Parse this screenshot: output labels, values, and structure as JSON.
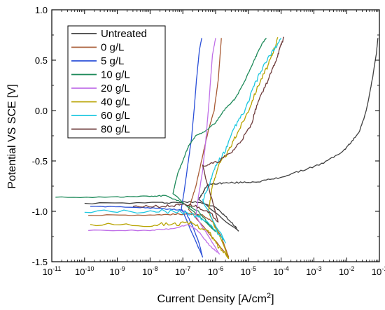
{
  "chart_data": {
    "type": "line",
    "title": "",
    "xlabel": "Current Density [A/cm",
    "xlabel_sup": "2",
    "xlabel_end": "]",
    "ylabel": "Potential VS SCE [V]",
    "x_scale": "log",
    "xlim": [
      1e-11,
      0.1
    ],
    "ylim": [
      -1.5,
      1.0
    ],
    "grid": false,
    "legend_position": "top-left",
    "x_ticks": [
      {
        "base": "10",
        "exp": "-11",
        "value": 1e-11
      },
      {
        "base": "10",
        "exp": "-10",
        "value": 1e-10
      },
      {
        "base": "10",
        "exp": "-9",
        "value": 1e-09
      },
      {
        "base": "10",
        "exp": "-8",
        "value": 1e-08
      },
      {
        "base": "10",
        "exp": "-7",
        "value": 1e-07
      },
      {
        "base": "10",
        "exp": "-6",
        "value": 1e-06
      },
      {
        "base": "10",
        "exp": "-5",
        "value": 1e-05
      },
      {
        "base": "10",
        "exp": "-4",
        "value": 0.0001
      },
      {
        "base": "10",
        "exp": "-3",
        "value": 0.001
      },
      {
        "base": "10",
        "exp": "-2",
        "value": 0.01
      },
      {
        "base": "10",
        "exp": "-1",
        "value": 0.1
      }
    ],
    "y_ticks": [
      {
        "label": "-1.5",
        "value": -1.5
      },
      {
        "label": "-1.0",
        "value": -1.0
      },
      {
        "label": "-0.5",
        "value": -0.5
      },
      {
        "label": "0.0",
        "value": 0.0
      },
      {
        "label": "0.5",
        "value": 0.5
      },
      {
        "label": "1.0",
        "value": 1.0
      }
    ],
    "series": [
      {
        "name": "Untreated",
        "color": "#404040",
        "noise": 0.008,
        "points": [
          [
            1e-10,
            -0.92
          ],
          [
            2e-08,
            -0.915
          ],
          [
            1e-07,
            -0.91
          ],
          [
            3e-07,
            -0.905
          ],
          [
            1e-06,
            -0.96
          ],
          [
            2e-06,
            -1.05
          ],
          [
            4e-06,
            -1.15
          ],
          [
            5e-06,
            -1.2
          ],
          [
            3e-07,
            -0.88
          ],
          [
            4e-07,
            -0.82
          ],
          [
            5e-07,
            -0.76
          ],
          [
            7e-07,
            -0.73
          ],
          [
            1.5e-06,
            -0.72
          ],
          [
            5e-06,
            -0.715
          ],
          [
            2e-05,
            -0.705
          ],
          [
            8e-05,
            -0.67
          ],
          [
            0.0004,
            -0.6
          ],
          [
            0.002,
            -0.52
          ],
          [
            0.008,
            -0.4
          ],
          [
            0.015,
            -0.3
          ],
          [
            0.025,
            -0.2
          ],
          [
            0.04,
            0.0
          ],
          [
            0.06,
            0.3
          ],
          [
            0.08,
            0.55
          ],
          [
            0.09,
            0.72
          ]
        ]
      },
      {
        "name": "0 g/L",
        "color": "#a85b35",
        "noise": 0.006,
        "points": [
          [
            1.3e-10,
            -1.04
          ],
          [
            1e-08,
            -1.035
          ],
          [
            5e-08,
            -1.03
          ],
          [
            1.5e-07,
            -1.025
          ],
          [
            4e-07,
            -1.04
          ],
          [
            8e-07,
            -1.1
          ],
          [
            1.5e-06,
            -1.25
          ],
          [
            2.5e-06,
            -1.45
          ],
          [
            1.5e-07,
            -0.98
          ],
          [
            2.5e-07,
            -0.75
          ],
          [
            4e-07,
            -0.45
          ],
          [
            6e-07,
            -0.2
          ],
          [
            9e-07,
            0.0
          ],
          [
            1.2e-06,
            0.3
          ],
          [
            1.5e-06,
            0.72
          ]
        ]
      },
      {
        "name": "5 g/L",
        "color": "#2a4fd8",
        "noise": 0.005,
        "points": [
          [
            1.5e-10,
            -0.95
          ],
          [
            5e-09,
            -0.96
          ],
          [
            3e-08,
            -0.975
          ],
          [
            8e-08,
            -0.985
          ],
          [
            1.2e-07,
            -1.0
          ],
          [
            2e-07,
            -1.15
          ],
          [
            3e-07,
            -1.3
          ],
          [
            4e-07,
            -1.45
          ],
          [
            9e-08,
            -0.97
          ],
          [
            1.1e-07,
            -0.8
          ],
          [
            1.4e-07,
            -0.55
          ],
          [
            1.8e-07,
            -0.3
          ],
          [
            2.2e-07,
            0.0
          ],
          [
            2.6e-07,
            0.3
          ],
          [
            3.2e-07,
            0.6
          ],
          [
            3.8e-07,
            0.72
          ]
        ]
      },
      {
        "name": "10 g/L",
        "color": "#1e8a5a",
        "noise": 0.006,
        "points": [
          [
            1.3e-11,
            -0.86
          ],
          [
            1e-09,
            -0.857
          ],
          [
            1e-08,
            -0.85
          ],
          [
            3e-08,
            -0.845
          ],
          [
            8e-08,
            -0.9
          ],
          [
            3e-07,
            -1.0
          ],
          [
            6e-07,
            -1.12
          ],
          [
            1e-06,
            -1.2
          ],
          [
            5e-08,
            -0.82
          ],
          [
            7e-08,
            -0.62
          ],
          [
            1e-07,
            -0.5
          ],
          [
            1.5e-07,
            -0.35
          ],
          [
            2.5e-07,
            -0.25
          ],
          [
            5e-07,
            -0.2
          ],
          [
            1e-06,
            -0.12
          ],
          [
            2e-06,
            0.02
          ],
          [
            4e-06,
            0.12
          ],
          [
            8e-06,
            0.3
          ],
          [
            1.5e-05,
            0.5
          ],
          [
            2.5e-05,
            0.65
          ],
          [
            3.5e-05,
            0.72
          ]
        ]
      },
      {
        "name": "20 g/L",
        "color": "#c070e8",
        "noise": 0.005,
        "points": [
          [
            1.3e-10,
            -1.19
          ],
          [
            1e-08,
            -1.19
          ],
          [
            5e-08,
            -1.17
          ],
          [
            1.5e-07,
            -1.13
          ],
          [
            3e-07,
            -1.2
          ],
          [
            7e-07,
            -1.35
          ],
          [
            1.3e-06,
            -1.42
          ],
          [
            2.5e-07,
            -1.05
          ],
          [
            3e-07,
            -0.85
          ],
          [
            4e-07,
            -0.6
          ],
          [
            5e-07,
            -0.3
          ],
          [
            6e-07,
            0.0
          ],
          [
            7e-07,
            0.3
          ],
          [
            8e-07,
            0.55
          ],
          [
            1e-06,
            0.72
          ]
        ]
      },
      {
        "name": "40 g/L",
        "color": "#b8a300",
        "noise": 0.02,
        "points": [
          [
            1.5e-10,
            -1.13
          ],
          [
            1e-08,
            -1.13
          ],
          [
            5e-08,
            -1.125
          ],
          [
            2e-07,
            -1.12
          ],
          [
            6e-07,
            -1.2
          ],
          [
            1.2e-06,
            -1.35
          ],
          [
            2.5e-06,
            -1.45
          ],
          [
            6e-07,
            -1.0
          ],
          [
            8e-07,
            -0.75
          ],
          [
            1.2e-06,
            -0.55
          ],
          [
            2.5e-06,
            -0.4
          ],
          [
            5e-06,
            -0.2
          ],
          [
            1e-05,
            0.0
          ],
          [
            2e-05,
            0.25
          ],
          [
            4e-05,
            0.45
          ],
          [
            6e-05,
            0.6
          ],
          [
            8e-05,
            0.72
          ]
        ]
      },
      {
        "name": "60 g/L",
        "color": "#1ec8e0",
        "noise": 0.02,
        "points": [
          [
            1e-10,
            -1.01
          ],
          [
            1e-08,
            -1.0
          ],
          [
            8e-08,
            -1.0
          ],
          [
            3e-07,
            -1.05
          ],
          [
            8e-07,
            -1.15
          ],
          [
            2e-06,
            -1.3
          ],
          [
            4e-07,
            -0.9
          ],
          [
            7e-07,
            -0.7
          ],
          [
            1e-06,
            -0.55
          ],
          [
            2e-06,
            -0.4
          ],
          [
            4e-06,
            -0.15
          ],
          [
            8e-06,
            0.0
          ],
          [
            1.5e-05,
            0.25
          ],
          [
            3e-05,
            0.45
          ],
          [
            6e-05,
            0.6
          ],
          [
            0.0001,
            0.72
          ]
        ]
      },
      {
        "name": "80 g/L",
        "color": "#6e3b3b",
        "noise": 0.015,
        "points": [
          [
            3e-09,
            -0.95
          ],
          [
            3e-08,
            -0.95
          ],
          [
            1e-07,
            -0.94
          ],
          [
            2e-07,
            -0.94
          ],
          [
            6e-07,
            -1.0
          ],
          [
            1.2e-06,
            -1.1
          ],
          [
            4e-07,
            -0.55
          ],
          [
            1e-06,
            -0.52
          ],
          [
            3e-06,
            -0.42
          ],
          [
            6e-06,
            -0.3
          ],
          [
            1.2e-05,
            -0.15
          ],
          [
            2e-05,
            0.1
          ],
          [
            4e-05,
            0.3
          ],
          [
            7e-05,
            0.5
          ],
          [
            0.0001,
            0.65
          ],
          [
            0.00012,
            0.72
          ]
        ]
      }
    ]
  }
}
